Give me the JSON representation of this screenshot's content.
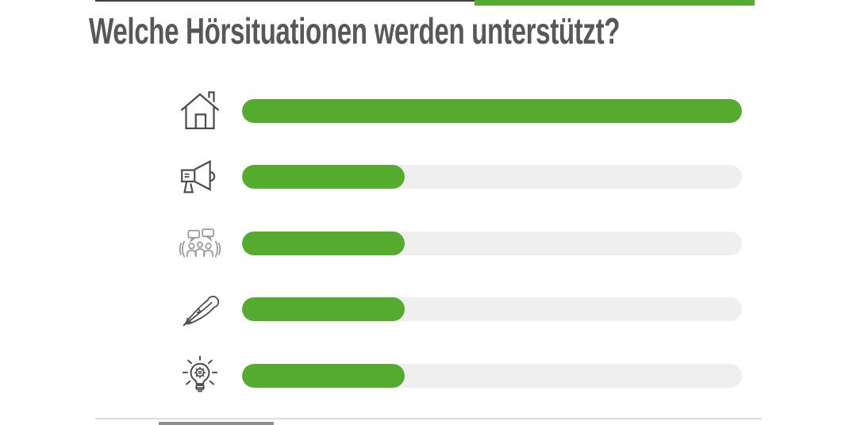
{
  "header": {
    "title": "Welche Hörsituationen werden unterstützt?",
    "title_color": "#58585a"
  },
  "decorations": {
    "top_dark_line_color": "#3f3f3f",
    "top_green_bar_color": "#55ab2d",
    "bottom_line_color": "#dedede",
    "bottom_dark_segment_color": "#8f8f8f"
  },
  "chart_data": {
    "type": "bar",
    "orientation": "horizontal",
    "title": "Welche Hörsituationen werden unterstützt?",
    "categories": [
      "house-icon",
      "megaphone-icon",
      "group-conversation-icon",
      "feather-icon",
      "smart-lightbulb-icon"
    ],
    "values": [
      100,
      32.5,
      32.5,
      32.5,
      32.5
    ],
    "value_unit": "percent-of-track",
    "xlim": [
      0,
      100
    ],
    "bar_color": "#55ab2d",
    "track_color": "#efefef",
    "grid": false,
    "legend": false,
    "tick_labels": "none (categories shown as icons only)"
  },
  "rows": [
    {
      "icon": "house-icon",
      "value_pct": 100
    },
    {
      "icon": "megaphone-icon",
      "value_pct": 32.5
    },
    {
      "icon": "group-conversation-icon",
      "value_pct": 32.5
    },
    {
      "icon": "feather-icon",
      "value_pct": 32.5
    },
    {
      "icon": "smart-lightbulb-icon",
      "value_pct": 32.5
    }
  ]
}
